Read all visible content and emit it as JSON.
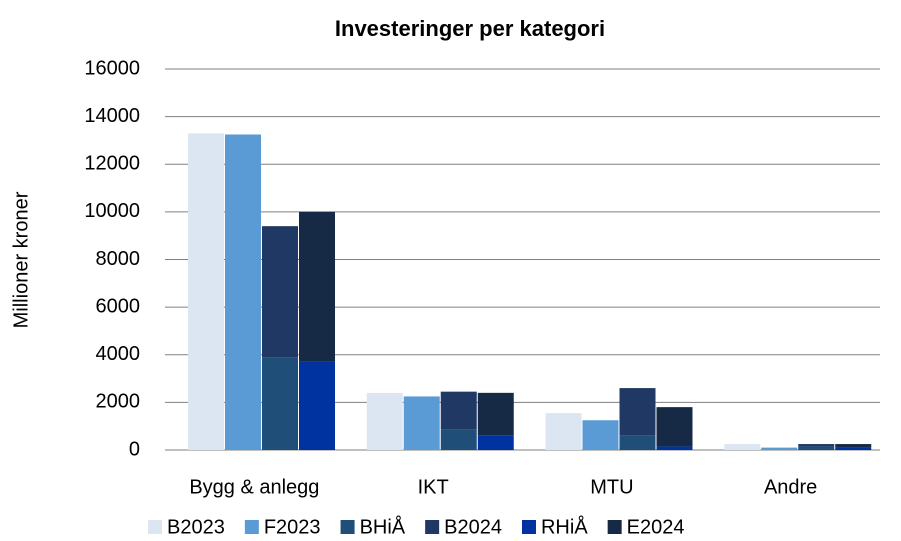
{
  "chart_data": {
    "type": "bar",
    "title": "Investeringer per kategori",
    "y_label": "Millioner kroner",
    "categories": [
      "Bygg & anlegg",
      "IKT",
      "MTU",
      "Andre"
    ],
    "series": [
      {
        "name": "B2023",
        "color": "#dce6f2",
        "values": [
          13300,
          2400,
          1550,
          250
        ]
      },
      {
        "name": "F2023",
        "color": "#5b9bd5",
        "values": [
          13250,
          2250,
          1250,
          100
        ]
      },
      {
        "name": "BHiÅ",
        "color": "#1f4e79",
        "values": [
          3900,
          850,
          600,
          150
        ]
      },
      {
        "name": "B2024",
        "color": "#1f3864",
        "values": [
          5500,
          1600,
          2000,
          100
        ]
      },
      {
        "name": "RHiÅ",
        "color": "#0033a0",
        "values": [
          3700,
          600,
          150,
          100
        ]
      },
      {
        "name": "E2024",
        "color": "#172a45",
        "values": [
          6300,
          1800,
          1650,
          150
        ]
      }
    ],
    "ylim": [
      0,
      16000
    ],
    "yticks": [
      0,
      2000,
      4000,
      6000,
      8000,
      10000,
      12000,
      14000,
      16000
    ],
    "grid": true
  }
}
